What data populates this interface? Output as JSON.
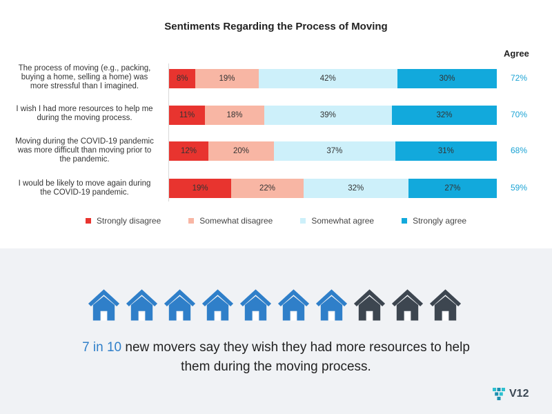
{
  "chart_data": {
    "type": "bar",
    "stacked": true,
    "orientation": "horizontal",
    "title": "Sentiments Regarding the Process of Moving",
    "categories": [
      "The process of moving (e.g., packing, buying a home, selling a home) was more stressful than I imagined.",
      "I wish I had more resources to help me during the moving process.",
      "Moving during the COVID-19 pandemic was more difficult than moving prior to the pandemic.",
      "I would be likely to move again during the COVID-19 pandemic."
    ],
    "series": [
      {
        "name": "Strongly disagree",
        "color": "#e8342f",
        "values": [
          8,
          11,
          12,
          19
        ]
      },
      {
        "name": "Somewhat disagree",
        "color": "#f8b6a4",
        "values": [
          19,
          18,
          20,
          22
        ]
      },
      {
        "name": "Somewhat agree",
        "color": "#cdf0fa",
        "values": [
          42,
          39,
          37,
          32
        ]
      },
      {
        "name": "Strongly agree",
        "color": "#12a9dc",
        "values": [
          30,
          32,
          31,
          27
        ]
      }
    ],
    "value_labels": [
      [
        "8%",
        "19%",
        "42%",
        "30%"
      ],
      [
        "11%",
        "18%",
        "39%",
        "32%"
      ],
      [
        "12%",
        "20%",
        "37%",
        "31%"
      ],
      [
        "19%",
        "22%",
        "32%",
        "27%"
      ]
    ],
    "agree_header": "Agree",
    "agree_totals": [
      "72%",
      "70%",
      "68%",
      "59%"
    ],
    "legend_position": "bottom"
  },
  "infographic": {
    "houses_total": 10,
    "houses_highlighted": 7,
    "highlight_color": "#2f7fc9",
    "muted_color": "#3d4650",
    "stat_highlight": "7 in 10",
    "stat_line1": " new movers say they wish they had more resources to help",
    "stat_line2": "them during the moving process."
  },
  "logo": {
    "text": "V12",
    "icon": "v12-logo-icon"
  }
}
